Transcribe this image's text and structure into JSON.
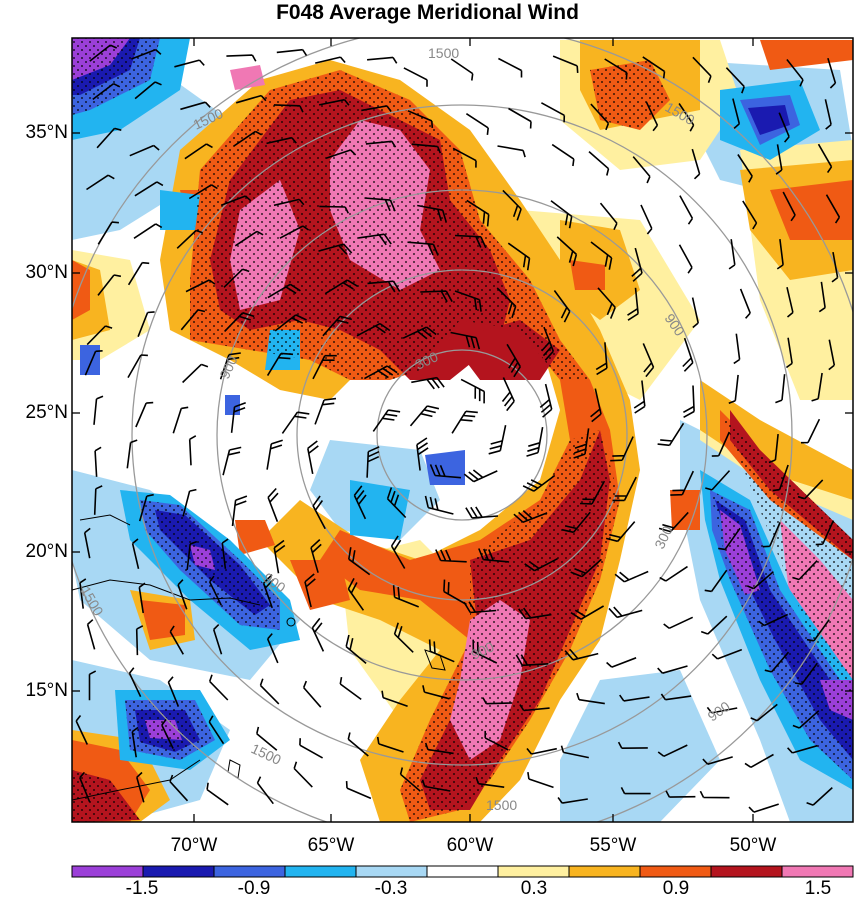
{
  "title": "F048 Average Meridional Wind",
  "lat_labels": [
    "35°N",
    "30°N",
    "25°N",
    "20°N",
    "15°N"
  ],
  "lon_labels": [
    "70°W",
    "65°W",
    "60°W",
    "55°W",
    "50°W"
  ],
  "contour_labels": [
    "1500",
    "1500",
    "1500",
    "1500",
    "1500",
    "1500",
    "900",
    "900",
    "900",
    "900",
    "900",
    "300",
    "300"
  ],
  "colorbar": {
    "labels": [
      "-1.5",
      "-0.9",
      "-0.3",
      "0.3",
      "0.9",
      "1.5"
    ],
    "colors": [
      "#9b3fd8",
      "#1a1ab0",
      "#3c64e0",
      "#22b4f0",
      "#a8d8f4",
      "#ffffff",
      "#fff0a0",
      "#f8b420",
      "#f05a14",
      "#b4141e",
      "#f078b4"
    ]
  },
  "palette": {
    "purple": "#9b3fd8",
    "navy": "#1a1ab0",
    "blue": "#3c64e0",
    "cyan": "#22b4f0",
    "lightblue": "#a8d8f4",
    "white": "#ffffff",
    "lightyellow": "#fff0a0",
    "orange": "#f8b420",
    "redorange": "#f05a14",
    "darkred": "#b4141e",
    "pink": "#f078b4"
  }
}
